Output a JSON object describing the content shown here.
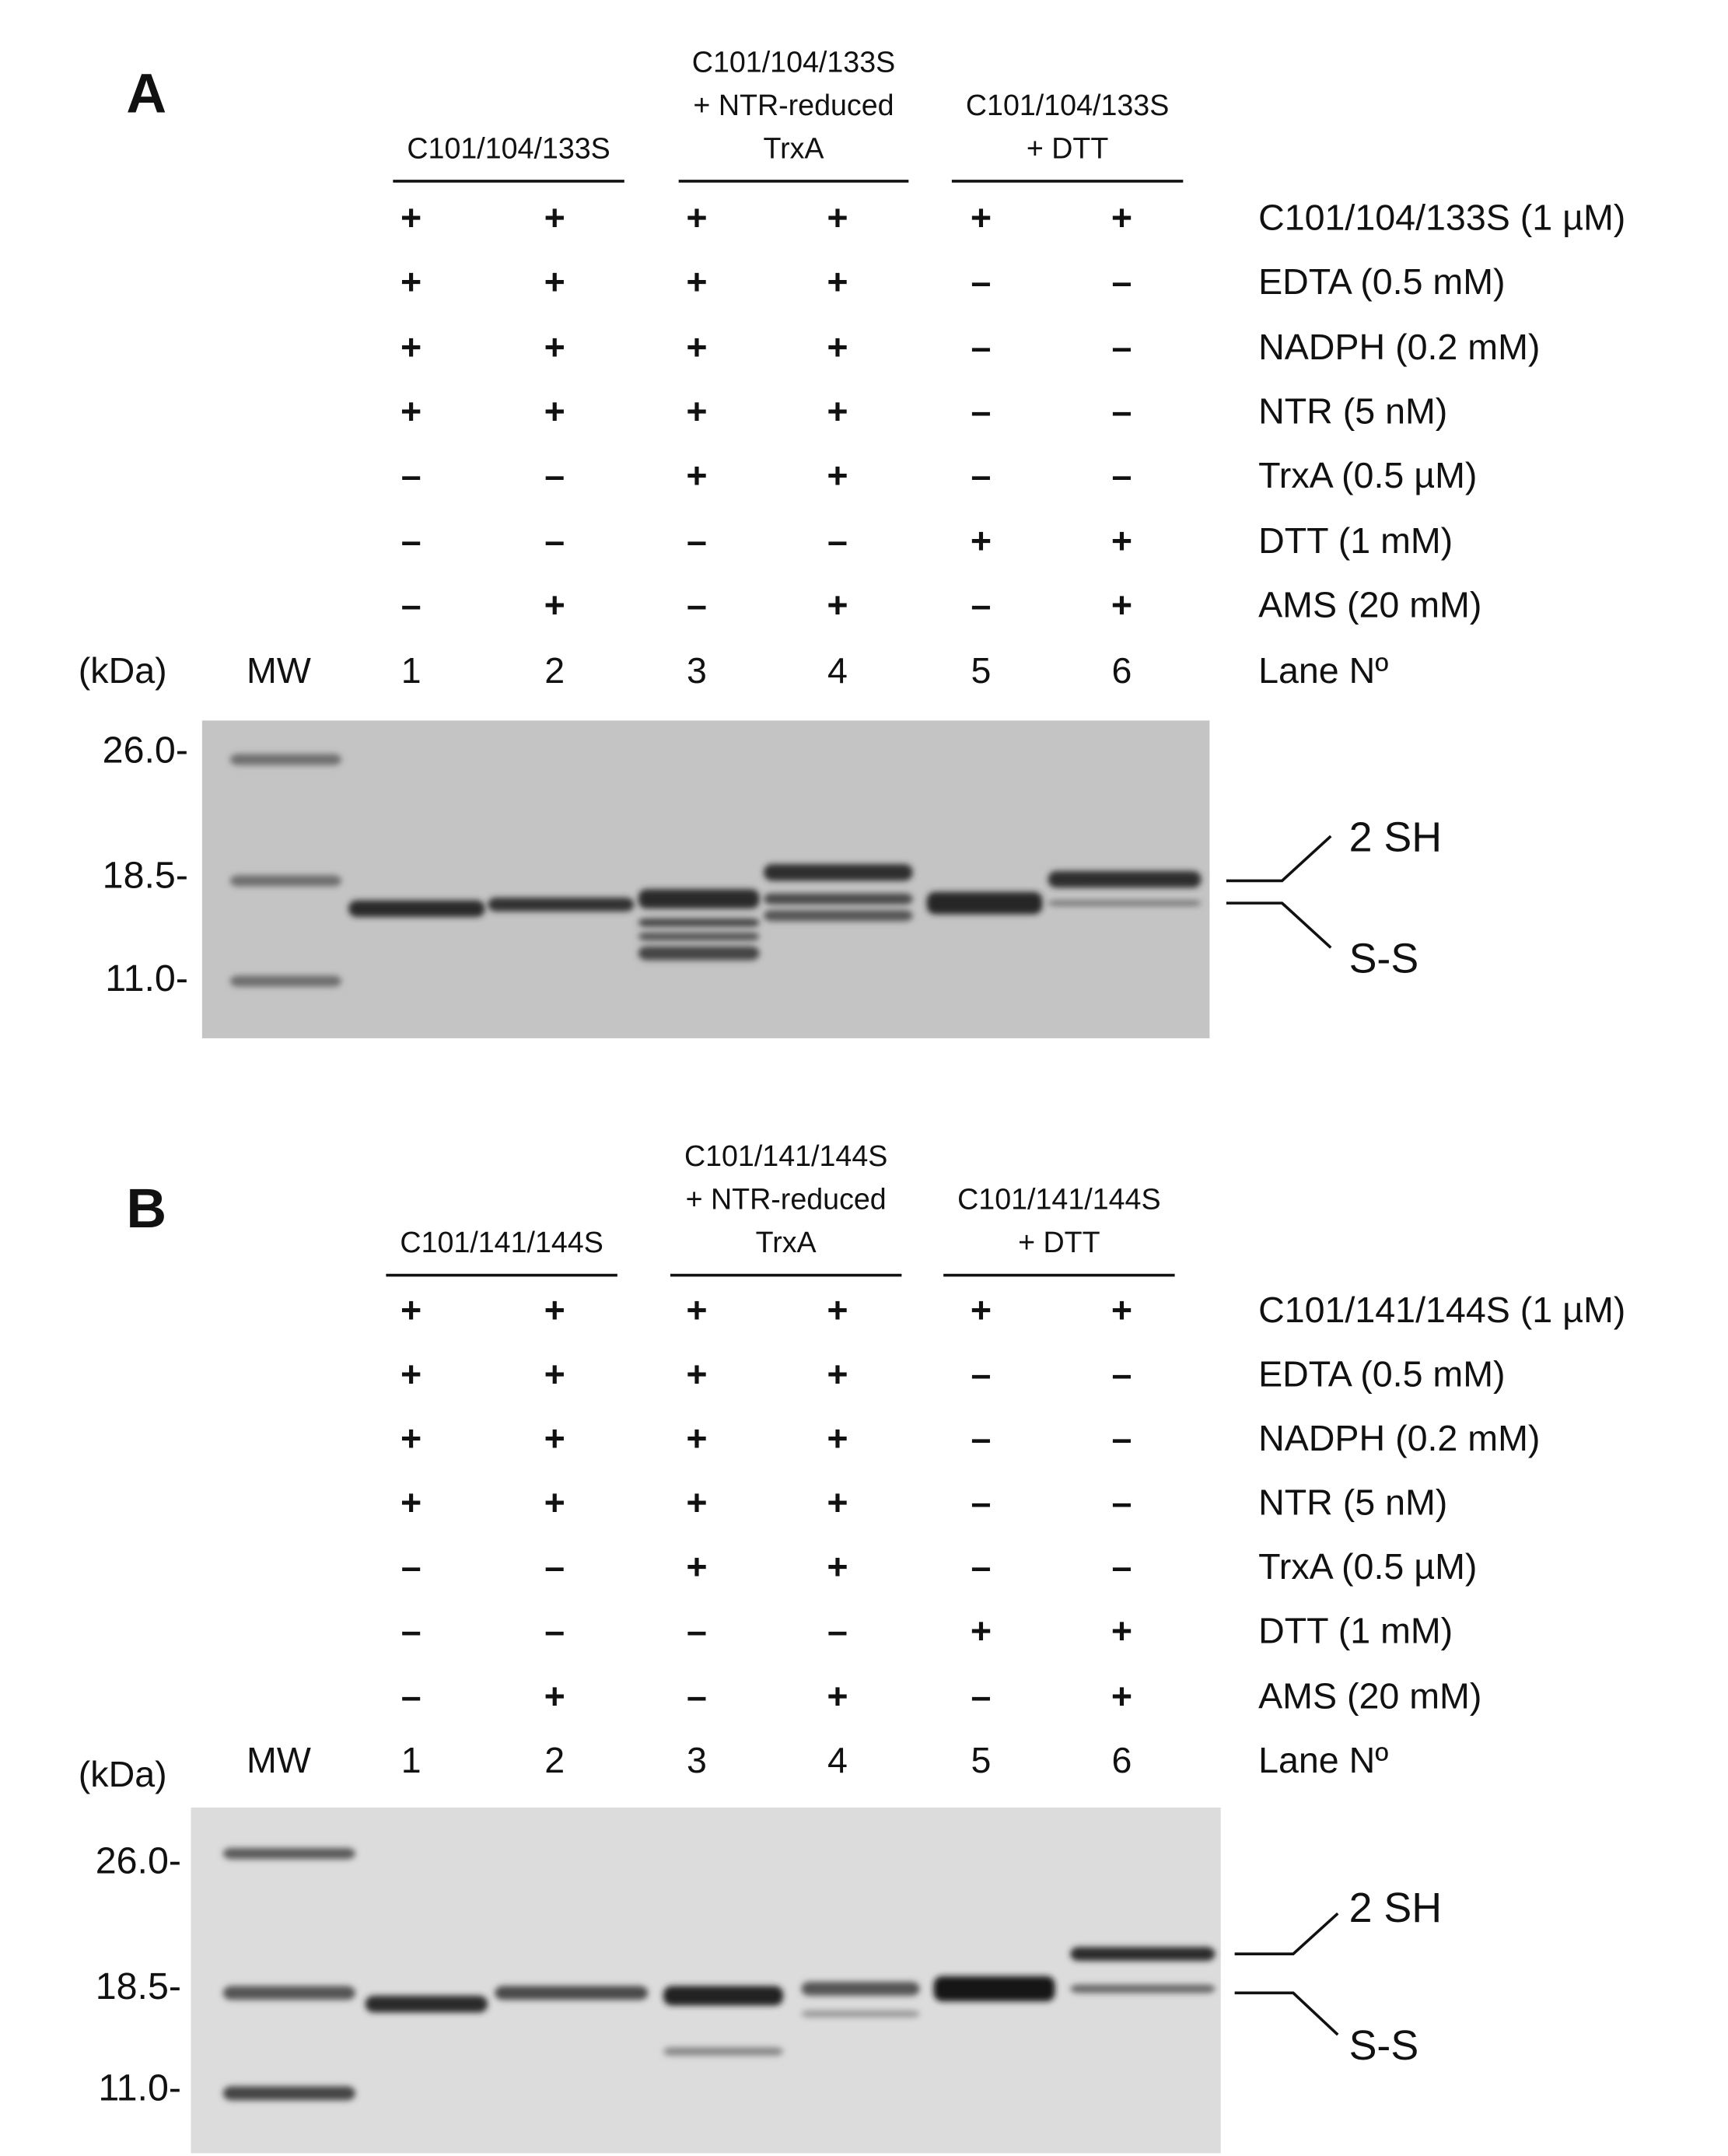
{
  "panels": [
    {
      "label": "A",
      "groups": [
        {
          "lines": [
            "C101/104/133S"
          ]
        },
        {
          "lines": [
            "C101/104/133S",
            "+ NTR-reduced",
            "TrxA"
          ]
        },
        {
          "lines": [
            "C101/104/133S",
            "+ DTT"
          ]
        }
      ],
      "rows": [
        {
          "name": "C101/104/133S (1 µM)",
          "signs": [
            "+",
            "+",
            "+",
            "+",
            "+",
            "+"
          ]
        },
        {
          "name": "EDTA (0.5 mM)",
          "signs": [
            "+",
            "+",
            "+",
            "+",
            "–",
            "–"
          ]
        },
        {
          "name": "NADPH (0.2 mM)",
          "signs": [
            "+",
            "+",
            "+",
            "+",
            "–",
            "–"
          ]
        },
        {
          "name": "NTR (5 nM)",
          "signs": [
            "+",
            "+",
            "+",
            "+",
            "–",
            "–"
          ]
        },
        {
          "name": "TrxA (0.5 µM)",
          "signs": [
            "–",
            "–",
            "+",
            "+",
            "–",
            "–"
          ]
        },
        {
          "name": "DTT (1 mM)",
          "signs": [
            "–",
            "–",
            "–",
            "–",
            "+",
            "+"
          ]
        },
        {
          "name": "AMS (20 mM)",
          "signs": [
            "–",
            "+",
            "–",
            "+",
            "–",
            "+"
          ]
        }
      ],
      "unit": "(kDa)",
      "mw": "MW",
      "lanes": [
        "1",
        "2",
        "3",
        "4",
        "5",
        "6"
      ],
      "lane_title": "Lane Nº",
      "markers": [
        "26.0-",
        "18.5-",
        "11.0-"
      ],
      "band_labels": [
        "2 SH",
        "S-S"
      ]
    },
    {
      "label": "B",
      "groups": [
        {
          "lines": [
            "C101/141/144S"
          ]
        },
        {
          "lines": [
            "C101/141/144S",
            "+ NTR-reduced",
            "TrxA"
          ]
        },
        {
          "lines": [
            "C101/141/144S",
            "+ DTT"
          ]
        }
      ],
      "rows": [
        {
          "name": "C101/141/144S (1 µM)",
          "signs": [
            "+",
            "+",
            "+",
            "+",
            "+",
            "+"
          ]
        },
        {
          "name": "EDTA (0.5 mM)",
          "signs": [
            "+",
            "+",
            "+",
            "+",
            "–",
            "–"
          ]
        },
        {
          "name": "NADPH (0.2 mM)",
          "signs": [
            "+",
            "+",
            "+",
            "+",
            "–",
            "–"
          ]
        },
        {
          "name": "NTR (5 nM)",
          "signs": [
            "+",
            "+",
            "+",
            "+",
            "–",
            "–"
          ]
        },
        {
          "name": "TrxA (0.5 µM)",
          "signs": [
            "–",
            "–",
            "+",
            "+",
            "–",
            "–"
          ]
        },
        {
          "name": "DTT (1 mM)",
          "signs": [
            "–",
            "–",
            "–",
            "–",
            "+",
            "+"
          ]
        },
        {
          "name": "AMS (20 mM)",
          "signs": [
            "–",
            "+",
            "–",
            "+",
            "–",
            "+"
          ]
        }
      ],
      "unit": "(kDa)",
      "mw": "MW",
      "lanes": [
        "1",
        "2",
        "3",
        "4",
        "5",
        "6"
      ],
      "lane_title": "Lane Nº",
      "markers": [
        "26.0-",
        "18.5-",
        "11.0-"
      ],
      "band_labels": [
        "2 SH",
        "S-S"
      ]
    }
  ]
}
